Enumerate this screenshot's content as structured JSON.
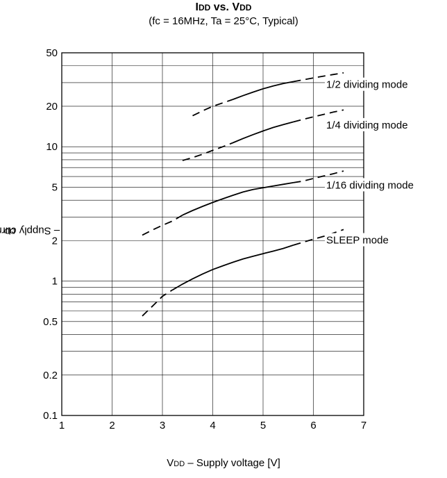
{
  "chart_data": {
    "type": "line",
    "title": "IDD vs. VDD",
    "title_parts": [
      {
        "text": "I",
        "small": false
      },
      {
        "text": "DD",
        "small": true
      },
      {
        "text": " vs. V",
        "small": false
      },
      {
        "text": "DD",
        "small": true
      }
    ],
    "subtitle": "(fc = 16MHz, Ta = 25°C, Typical)",
    "ylabel": "IDD – Supply current [mA]",
    "ylabel_parts": [
      {
        "text": "I",
        "small": false
      },
      {
        "text": "DD",
        "small": true
      },
      {
        "text": " – Supply current [mA]",
        "small": false
      }
    ],
    "xlabel": "VDD – Supply voltage [V]",
    "xlabel_parts": [
      {
        "text": "V",
        "small": false
      },
      {
        "text": "DD",
        "small": true
      },
      {
        "text": " – Supply voltage [V]",
        "small": false
      }
    ],
    "xlim": [
      1,
      7
    ],
    "ylim": [
      0.1,
      50
    ],
    "yscale": "log",
    "grid": true,
    "x_ticks": [
      1,
      2,
      3,
      4,
      5,
      6,
      7
    ],
    "y_ticks": [
      0.1,
      0.2,
      0.5,
      1,
      2,
      5,
      10,
      20,
      50
    ],
    "y_tick_labels": [
      "0.1",
      "0.2",
      "0.5",
      "1",
      "2",
      "5",
      "10",
      "20",
      "50"
    ],
    "series": [
      {
        "name": "1/2 dividing mode",
        "x": [
          3.6,
          3.8,
          4.0,
          4.2,
          4.4,
          4.6,
          4.8,
          5.0,
          5.2,
          5.4,
          5.6,
          5.8,
          6.0,
          6.2,
          6.4,
          6.6
        ],
        "y": [
          17,
          18.5,
          20,
          21.2,
          22.5,
          24,
          25.5,
          27,
          28.3,
          29.5,
          30.5,
          31.5,
          32.5,
          33.5,
          34.5,
          35.5
        ],
        "solid_range": [
          4.4,
          5.6
        ]
      },
      {
        "name": "1/4 dividing mode",
        "x": [
          3.4,
          3.6,
          3.8,
          4.0,
          4.2,
          4.4,
          4.6,
          4.8,
          5.0,
          5.2,
          5.4,
          5.6,
          5.8,
          6.0,
          6.2,
          6.4,
          6.6
        ],
        "y": [
          7.9,
          8.3,
          8.8,
          9.4,
          10.0,
          10.7,
          11.5,
          12.3,
          13.1,
          13.9,
          14.6,
          15.3,
          16.0,
          16.7,
          17.4,
          18.1,
          18.8
        ],
        "solid_range": [
          4.4,
          5.6
        ]
      },
      {
        "name": "1/16 dividing mode",
        "x": [
          2.6,
          2.8,
          3.0,
          3.2,
          3.4,
          3.6,
          3.8,
          4.0,
          4.2,
          4.4,
          4.6,
          4.8,
          5.0,
          5.2,
          5.4,
          5.6,
          5.8,
          6.0,
          6.2,
          6.4,
          6.6
        ],
        "y": [
          2.2,
          2.4,
          2.6,
          2.8,
          3.1,
          3.35,
          3.6,
          3.85,
          4.1,
          4.35,
          4.6,
          4.8,
          4.95,
          5.1,
          5.25,
          5.4,
          5.55,
          5.8,
          6.05,
          6.3,
          6.6
        ],
        "solid_range": [
          3.4,
          5.6
        ]
      },
      {
        "name": "SLEEP mode",
        "x": [
          2.6,
          2.8,
          3.0,
          3.2,
          3.4,
          3.6,
          3.8,
          4.0,
          4.2,
          4.4,
          4.6,
          4.8,
          5.0,
          5.2,
          5.4,
          5.6,
          5.8,
          6.0,
          6.2,
          6.4,
          6.6
        ],
        "y": [
          0.55,
          0.65,
          0.77,
          0.86,
          0.95,
          1.04,
          1.13,
          1.22,
          1.3,
          1.38,
          1.46,
          1.53,
          1.6,
          1.67,
          1.75,
          1.85,
          1.95,
          2.05,
          2.15,
          2.28,
          2.42
        ],
        "solid_range": [
          3.2,
          5.6
        ]
      }
    ],
    "series_label_y": [
      28,
      14,
      5,
      1.95
    ],
    "colors": {
      "line": "#000000",
      "grid": "#000000",
      "background": "#ffffff"
    }
  }
}
